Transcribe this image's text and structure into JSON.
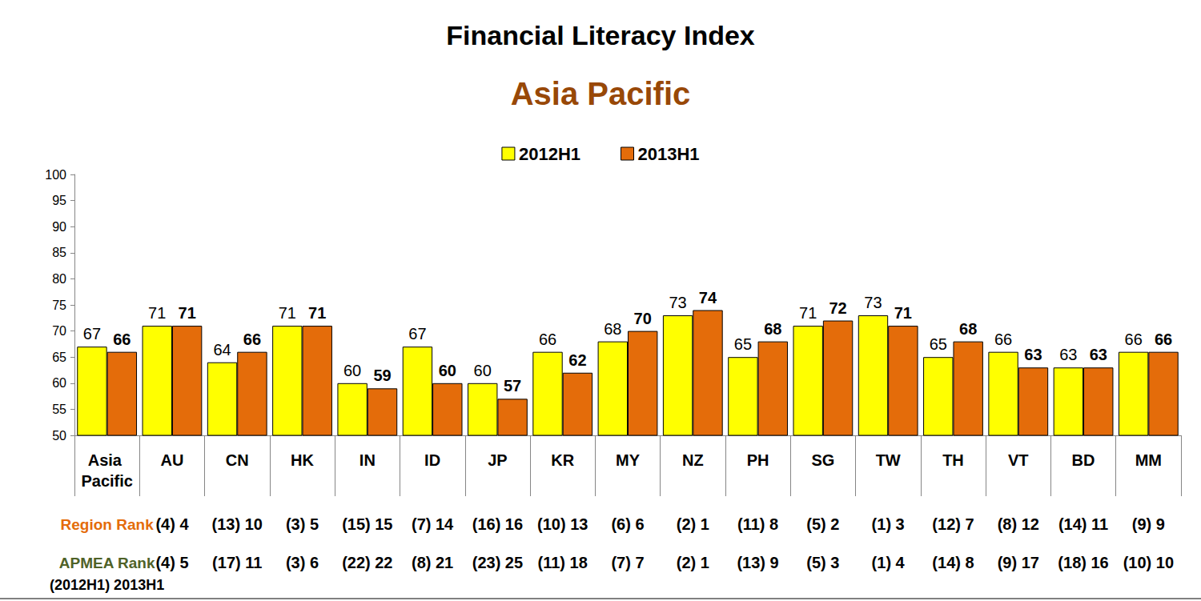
{
  "chart_data": {
    "type": "bar",
    "title": "Financial Literacy Index",
    "subtitle": "Asia Pacific",
    "categories": [
      "Asia Pacific",
      "AU",
      "CN",
      "HK",
      "IN",
      "ID",
      "JP",
      "KR",
      "MY",
      "NZ",
      "PH",
      "SG",
      "TW",
      "TH",
      "VT",
      "BD",
      "MM"
    ],
    "series": [
      {
        "name": "2012H1",
        "color": "#FFFF00",
        "values": [
          67,
          71,
          64,
          71,
          60,
          67,
          60,
          66,
          68,
          73,
          65,
          71,
          73,
          65,
          66,
          63,
          66
        ]
      },
      {
        "name": "2013H1",
        "color": "#E46C0A",
        "values": [
          66,
          71,
          66,
          71,
          59,
          60,
          57,
          62,
          70,
          74,
          68,
          72,
          71,
          68,
          63,
          63,
          66
        ]
      }
    ],
    "ylim": [
      50,
      100
    ],
    "yticks": [
      50,
      55,
      60,
      65,
      70,
      75,
      80,
      85,
      90,
      95,
      100
    ],
    "grid": false,
    "legend": "top",
    "data_labels": true,
    "rank_rows": [
      {
        "label": "Region Rank",
        "color": "#E46C0A",
        "values": [
          null,
          "(4) 4",
          "(13) 10",
          "(3) 5",
          "(15) 15",
          "(7) 14",
          "(16) 16",
          "(10) 13",
          "(6) 6",
          "(2) 1",
          "(11) 8",
          "(5) 2",
          "(1) 3",
          "(12) 7",
          "(8) 12",
          "(14) 11",
          "(9) 9"
        ]
      },
      {
        "label": "APMEA Rank",
        "color": "#4F6228",
        "values": [
          null,
          "(4) 5",
          "(17) 11",
          "(3) 6",
          "(22) 22",
          "(8) 21",
          "(23) 25",
          "(11) 18",
          "(7) 7",
          "(2) 1",
          "(13) 9",
          "(5) 3",
          "(1) 4",
          "(14) 8",
          "(9) 17",
          "(18) 16",
          "(10) 10"
        ]
      }
    ],
    "rank_note": "(2012H1) 2013H1"
  }
}
